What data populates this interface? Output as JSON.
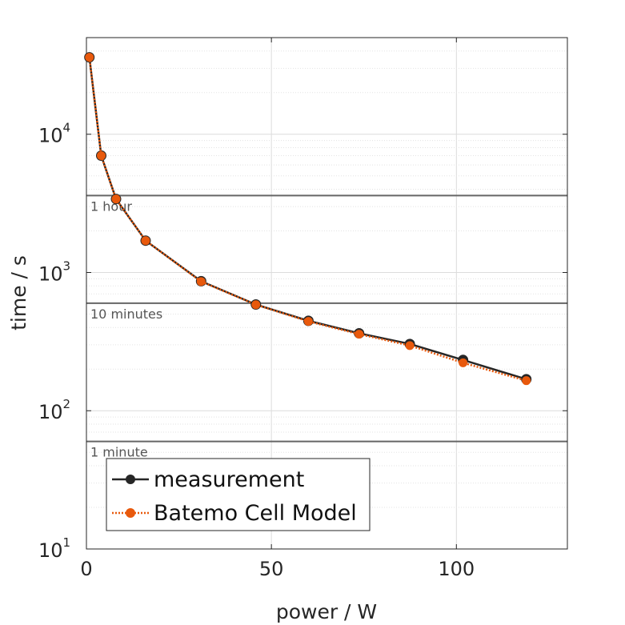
{
  "chart_data": {
    "type": "line",
    "xlabel": "power / W",
    "ylabel": "time / s",
    "xlim": [
      0,
      130
    ],
    "ylim": [
      10,
      50000
    ],
    "yscale": "log",
    "xticks": [
      0,
      50,
      100
    ],
    "yticks": [
      {
        "value": 10,
        "base": "10",
        "exp": "1"
      },
      {
        "value": 100,
        "base": "10",
        "exp": "2"
      },
      {
        "value": 1000,
        "base": "10",
        "exp": "3"
      },
      {
        "value": 10000,
        "base": "10",
        "exp": "4"
      }
    ],
    "grid": true,
    "legend_position": "bottom-left",
    "reference_lines": [
      {
        "y": 3600,
        "label": "1 hour"
      },
      {
        "y": 600,
        "label": "10 minutes"
      },
      {
        "y": 60,
        "label": "1 minute"
      }
    ],
    "series": [
      {
        "name": "measurement",
        "color": "#262626",
        "style": "solid",
        "x": [
          0.8,
          4,
          8,
          16,
          31,
          45.8,
          60,
          73.7,
          87.4,
          101.8,
          118.9
        ],
        "y": [
          36000,
          7000,
          3400,
          1700,
          865,
          587,
          447,
          363,
          304,
          233,
          169
        ]
      },
      {
        "name": "Batemo Cell Model",
        "color": "#e8590c",
        "style": "dotted",
        "x": [
          0.8,
          4,
          8,
          16,
          31,
          45.8,
          60,
          73.7,
          87.4,
          101.8,
          118.9
        ],
        "y": [
          36000,
          7000,
          3400,
          1700,
          860,
          585,
          443,
          358,
          296,
          222,
          165
        ]
      }
    ]
  }
}
